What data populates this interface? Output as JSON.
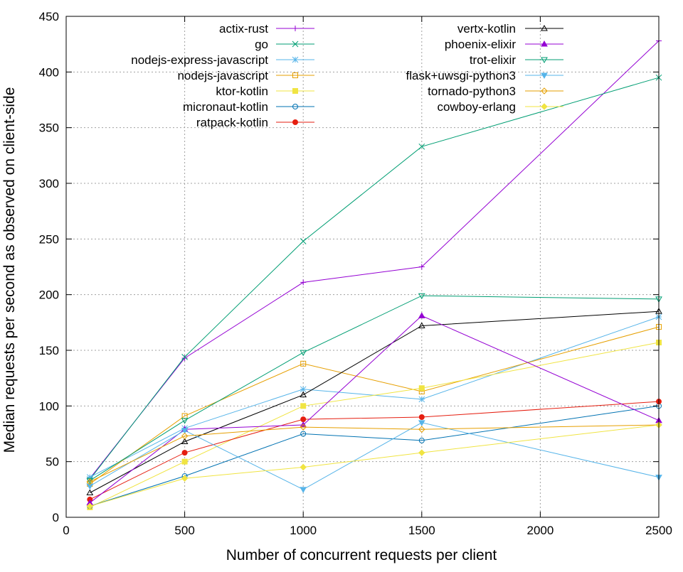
{
  "chart_data": {
    "type": "line",
    "title": "",
    "xlabel": "Number of concurrent requests per client",
    "ylabel": "Median requests per second as observed on client-side",
    "xlim": [
      0,
      2500
    ],
    "ylim": [
      0,
      450
    ],
    "xticks": [
      0,
      500,
      1000,
      1500,
      2000,
      2500
    ],
    "yticks": [
      0,
      50,
      100,
      150,
      200,
      250,
      300,
      350,
      400,
      450
    ],
    "grid": true,
    "legend_position": "top, inside plot, two columns",
    "series": [
      {
        "name": "actix-rust",
        "color": "#9400d3",
        "marker": "plus",
        "x": [
          100,
          500,
          1000,
          1500,
          2500
        ],
        "y": [
          35,
          143,
          211,
          225,
          428
        ]
      },
      {
        "name": "go",
        "color": "#009e73",
        "marker": "cross",
        "x": [
          100,
          500,
          1000,
          1500,
          2500
        ],
        "y": [
          34,
          144,
          248,
          333,
          395
        ]
      },
      {
        "name": "nodejs-express-javascript",
        "color": "#56b4e9",
        "marker": "star",
        "x": [
          100,
          500,
          1000,
          1500,
          2500
        ],
        "y": [
          36,
          80,
          115,
          106,
          180
        ]
      },
      {
        "name": "nodejs-javascript",
        "color": "#e69f00",
        "marker": "box",
        "x": [
          100,
          500,
          1000,
          1500,
          2500
        ],
        "y": [
          30,
          91,
          138,
          113,
          171
        ]
      },
      {
        "name": "ktor-kotlin",
        "color": "#f0e442",
        "marker": "filled-box",
        "x": [
          100,
          500,
          1000,
          1500,
          2500
        ],
        "y": [
          9,
          50,
          100,
          116,
          157
        ]
      },
      {
        "name": "micronaut-kotlin",
        "color": "#0072b2",
        "marker": "circle",
        "x": [
          100,
          500,
          1000,
          1500,
          2500
        ],
        "y": [
          10,
          37,
          75,
          69,
          100
        ]
      },
      {
        "name": "ratpack-kotlin",
        "color": "#e51e10",
        "marker": "filled-circle",
        "x": [
          100,
          500,
          1000,
          1500,
          2500
        ],
        "y": [
          16,
          58,
          88,
          90,
          104
        ]
      },
      {
        "name": "vertx-kotlin",
        "color": "#000000",
        "marker": "triangle",
        "x": [
          100,
          500,
          1000,
          1500,
          2500
        ],
        "y": [
          22,
          68,
          110,
          172,
          185
        ]
      },
      {
        "name": "phoenix-elixir",
        "color": "#9400d3",
        "marker": "filled-triangle",
        "x": [
          100,
          500,
          1000,
          1500,
          2500
        ],
        "y": [
          13,
          79,
          83,
          181,
          87
        ]
      },
      {
        "name": "trot-elixir",
        "color": "#009e73",
        "marker": "down-triangle",
        "x": [
          100,
          500,
          1000,
          1500,
          2500
        ],
        "y": [
          33,
          87,
          148,
          199,
          196
        ]
      },
      {
        "name": "flask+uwsgi-python3",
        "color": "#56b4e9",
        "marker": "filled-down-triangle",
        "x": [
          100,
          500,
          1000,
          1500,
          2500
        ],
        "y": [
          28,
          78,
          25,
          85,
          36
        ]
      },
      {
        "name": "tornado-python3",
        "color": "#e69f00",
        "marker": "diamond",
        "x": [
          100,
          500,
          1000,
          1500,
          2500
        ],
        "y": [
          32,
          73,
          81,
          79,
          83
        ]
      },
      {
        "name": "cowboy-erlang",
        "color": "#f0e442",
        "marker": "filled-diamond",
        "x": [
          100,
          500,
          1000,
          1500,
          2500
        ],
        "y": [
          10,
          35,
          45,
          58,
          83
        ]
      }
    ]
  }
}
